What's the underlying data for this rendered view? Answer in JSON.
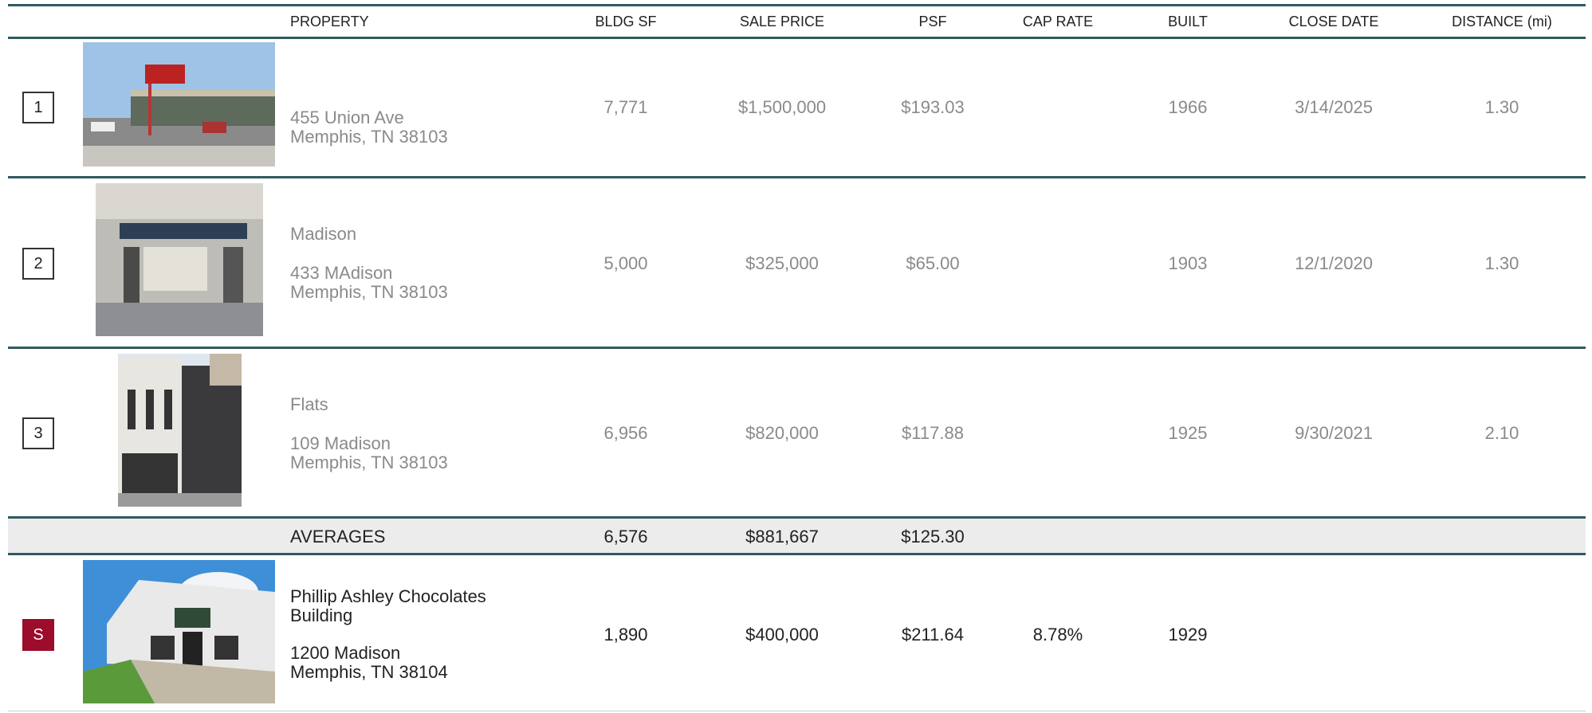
{
  "header": {
    "columns": [
      "PROPERTY",
      "BLDG SF",
      "SALE PRICE",
      "PSF",
      "CAP RATE",
      "BUILT",
      "CLOSE DATE",
      "DISTANCE (mi)"
    ]
  },
  "comps": [
    {
      "number": "1",
      "address": "455 Union Ave",
      "city": "Memphis, TN 38103",
      "bldg_sf": "7,771",
      "sale_price": "$1,500,000",
      "psf": "$193.03",
      "built": "1966",
      "close_date": "3/14/2025",
      "distance": "1.30"
    },
    {
      "number": "2",
      "name": "Madison",
      "address": "433 MAdison",
      "city": "Memphis, TN 38103",
      "bldg_sf": "5,000",
      "sale_price": "$325,000",
      "psf": "$65.00",
      "built": "1903",
      "close_date": "12/1/2020",
      "distance": "1.30"
    },
    {
      "number": "3",
      "name": "Flats",
      "address": "109 Madison",
      "city": "Memphis, TN 38103",
      "bldg_sf": "6,956",
      "sale_price": "$820,000",
      "psf": "$117.88",
      "built": "1925",
      "close_date": "9/30/2021",
      "distance": "2.10"
    }
  ],
  "averages": {
    "label": "AVERAGES",
    "bldg_sf": "6,576",
    "sale_price": "$881,667",
    "psf": "$125.30"
  },
  "subject": {
    "marker": "S",
    "name": "Phillip Ashley Chocolates Building",
    "address": "1200 Madison",
    "city": "Memphis, TN 38104",
    "bldg_sf": "1,890",
    "sale_price": "$400,000",
    "psf": "$211.64",
    "cap_rate": "8.78%",
    "built": "1929"
  }
}
